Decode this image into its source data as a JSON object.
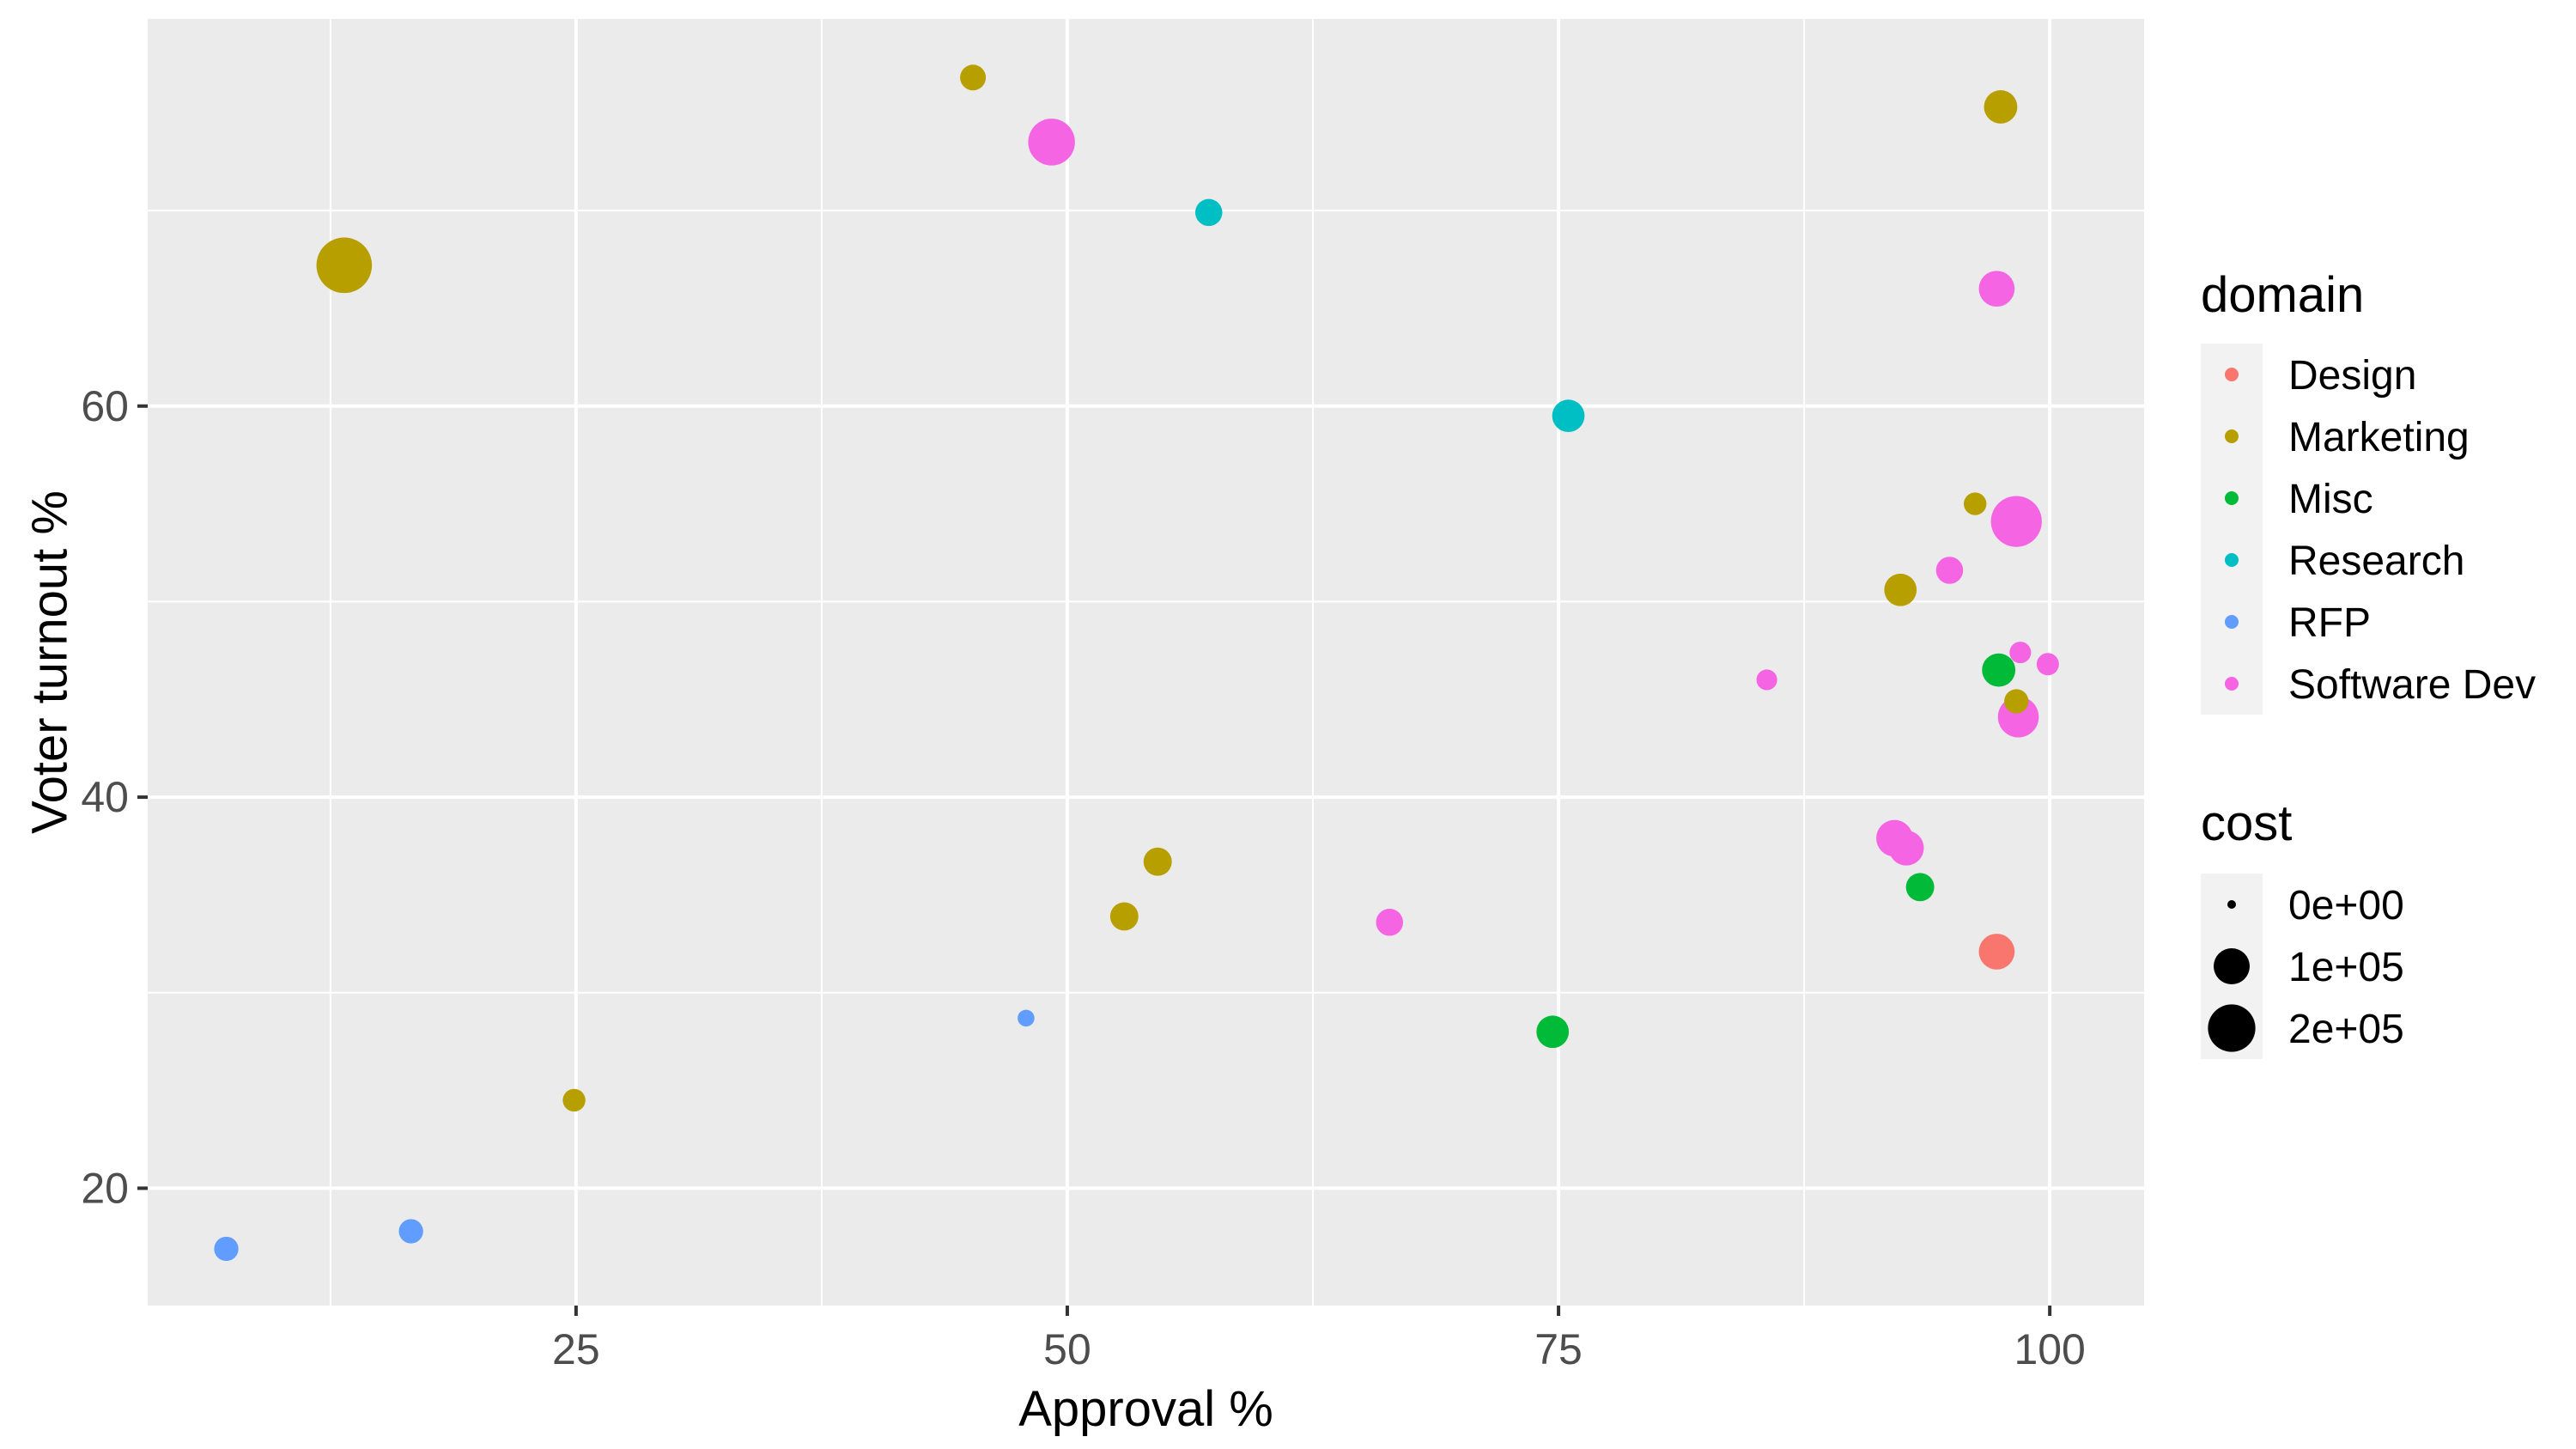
{
  "chart_data": {
    "type": "scatter",
    "xlabel": "Approval %",
    "ylabel": "Voter turnout %",
    "xlim": [
      3.2,
      104.8
    ],
    "ylim": [
      14.0,
      79.8
    ],
    "x_ticks": [
      25,
      50,
      75,
      100
    ],
    "y_ticks": [
      20,
      40,
      60
    ],
    "grid": true,
    "background": "#EBEBEB",
    "legend_position": "right",
    "color_legend": {
      "title": "domain",
      "entries": [
        {
          "label": "Design",
          "color": "#F8766D"
        },
        {
          "label": "Marketing",
          "color": "#B79F00"
        },
        {
          "label": "Misc",
          "color": "#00BA38"
        },
        {
          "label": "Research",
          "color": "#00BFC4"
        },
        {
          "label": "RFP",
          "color": "#619CFF"
        },
        {
          "label": "Software Dev",
          "color": "#F564E3"
        }
      ]
    },
    "size_legend": {
      "title": "cost",
      "entries": [
        {
          "label": "0e+00",
          "value": 0
        },
        {
          "label": "1e+05",
          "value": 100000
        },
        {
          "label": "2e+05",
          "value": 200000
        }
      ]
    },
    "points": [
      {
        "domain": "Marketing",
        "x": 45.2,
        "y": 76.8,
        "cost": 25000
      },
      {
        "domain": "Software Dev",
        "x": 49.2,
        "y": 73.5,
        "cost": 160000
      },
      {
        "domain": "Marketing",
        "x": 97.5,
        "y": 75.3,
        "cost": 60000
      },
      {
        "domain": "Marketing",
        "x": 13.2,
        "y": 67.2,
        "cost": 250000
      },
      {
        "domain": "Research",
        "x": 57.2,
        "y": 69.9,
        "cost": 30000
      },
      {
        "domain": "Software Dev",
        "x": 97.3,
        "y": 66.0,
        "cost": 75000
      },
      {
        "domain": "Research",
        "x": 75.5,
        "y": 59.5,
        "cost": 55000
      },
      {
        "domain": "Marketing",
        "x": 96.2,
        "y": 55.0,
        "cost": 15000
      },
      {
        "domain": "Software Dev",
        "x": 98.3,
        "y": 54.1,
        "cost": 200000
      },
      {
        "domain": "Software Dev",
        "x": 94.9,
        "y": 51.6,
        "cost": 30000
      },
      {
        "domain": "Marketing",
        "x": 92.4,
        "y": 50.6,
        "cost": 55000
      },
      {
        "domain": "Software Dev",
        "x": 98.5,
        "y": 47.4,
        "cost": 12000
      },
      {
        "domain": "Software Dev",
        "x": 99.9,
        "y": 46.8,
        "cost": 14000
      },
      {
        "domain": "Misc",
        "x": 97.4,
        "y": 46.5,
        "cost": 60000
      },
      {
        "domain": "Software Dev",
        "x": 85.6,
        "y": 46.0,
        "cost": 10000
      },
      {
        "domain": "Marketing",
        "x": 98.3,
        "y": 44.9,
        "cost": 20000
      },
      {
        "domain": "Software Dev",
        "x": 98.4,
        "y": 44.1,
        "cost": 110000
      },
      {
        "domain": "Software Dev",
        "x": 92.1,
        "y": 37.9,
        "cost": 80000
      },
      {
        "domain": "Software Dev",
        "x": 92.7,
        "y": 37.4,
        "cost": 70000
      },
      {
        "domain": "Marketing",
        "x": 54.6,
        "y": 36.7,
        "cost": 35000
      },
      {
        "domain": "Misc",
        "x": 93.4,
        "y": 35.4,
        "cost": 35000
      },
      {
        "domain": "Marketing",
        "x": 52.9,
        "y": 33.9,
        "cost": 35000
      },
      {
        "domain": "Software Dev",
        "x": 66.4,
        "y": 33.6,
        "cost": 30000
      },
      {
        "domain": "Design",
        "x": 97.3,
        "y": 32.1,
        "cost": 75000
      },
      {
        "domain": "RFP",
        "x": 47.9,
        "y": 28.7,
        "cost": 3000
      },
      {
        "domain": "Misc",
        "x": 74.7,
        "y": 28.0,
        "cost": 55000
      },
      {
        "domain": "Marketing",
        "x": 24.9,
        "y": 24.5,
        "cost": 15000
      },
      {
        "domain": "RFP",
        "x": 16.6,
        "y": 17.8,
        "cost": 20000
      },
      {
        "domain": "RFP",
        "x": 7.2,
        "y": 16.9,
        "cost": 20000
      }
    ]
  }
}
